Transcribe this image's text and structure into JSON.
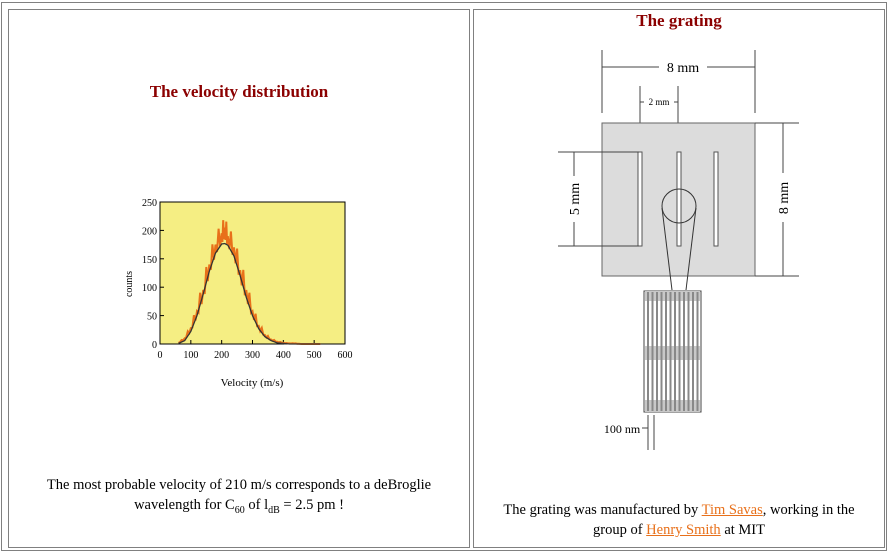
{
  "left": {
    "title": "The velocity distribution",
    "caption_line1": "The most probable velocity of 210 m/s corresponds to a deBroglie",
    "caption_pre": "wavelength for C",
    "caption_sub": "60",
    "caption_mid": " of l",
    "caption_sub2": "dB",
    "caption_post": " = 2.5 pm !"
  },
  "right": {
    "title": "The grating",
    "label_8mm_top": "8 mm",
    "label_2mm": "2 mm",
    "label_5mm": "5 mm",
    "label_8mm_side": "8 mm",
    "label_100nm": "100 nm",
    "caption_pre": "The grating was manufactured by ",
    "caption_link1": "Tim Savas",
    "caption_mid": ", working in the",
    "caption_line2_pre": "group of ",
    "caption_link2": "Henry Smith",
    "caption_post": " at MIT",
    "colors": {
      "link": "#e8701a",
      "heading": "#8b0000",
      "plate": "#dcdcdc"
    }
  },
  "chart_data": {
    "type": "line",
    "title": "",
    "xlabel": "Velocity (m/s)",
    "ylabel": "counts",
    "xlim": [
      0,
      600
    ],
    "ylim": [
      0,
      250
    ],
    "x_ticks": [
      0,
      100,
      200,
      300,
      400,
      500,
      600
    ],
    "y_ticks": [
      0,
      50,
      100,
      150,
      200,
      250
    ],
    "grid": false,
    "background": "#f5ee83",
    "series": [
      {
        "style": "noisy-data",
        "color": "#e8701a",
        "x": [
          60,
          80,
          100,
          120,
          140,
          160,
          180,
          200,
          210,
          220,
          240,
          260,
          280,
          300,
          320,
          340,
          360,
          380,
          400,
          420,
          440,
          460,
          480,
          500,
          520
        ],
        "y": [
          2,
          10,
          28,
          58,
          95,
          140,
          175,
          195,
          205,
          190,
          170,
          130,
          95,
          58,
          32,
          16,
          8,
          4,
          2,
          1,
          1,
          0,
          0,
          0,
          0
        ]
      },
      {
        "style": "fit",
        "color": "#333333",
        "x": [
          60,
          80,
          100,
          120,
          140,
          160,
          180,
          200,
          210,
          220,
          240,
          260,
          280,
          300,
          320,
          340,
          360,
          380,
          400,
          420,
          440,
          460,
          480,
          500,
          520
        ],
        "y": [
          1,
          6,
          22,
          50,
          88,
          128,
          160,
          176,
          177,
          174,
          155,
          120,
          82,
          50,
          27,
          13,
          6,
          2,
          1,
          0,
          0,
          0,
          0,
          0,
          0
        ]
      }
    ]
  }
}
